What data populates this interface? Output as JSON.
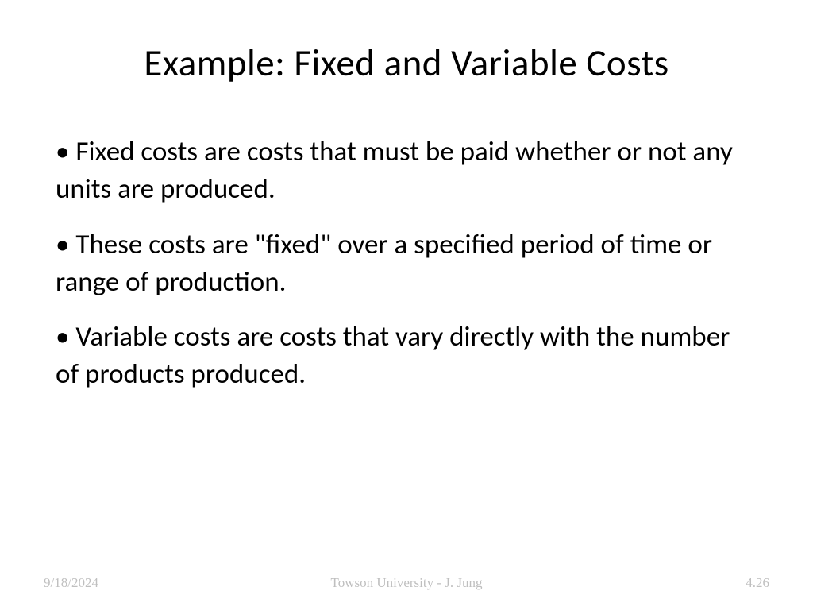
{
  "slide": {
    "title": "Example: Fixed and Variable Costs",
    "bullets": [
      "Fixed costs are costs that must be paid whether or not any units are produced.",
      "These costs are \"fixed\" over a specified period of time or range of production.",
      "Variable costs are costs that vary directly with the number of products produced."
    ],
    "bullet_char": "•"
  },
  "footer": {
    "date": "9/18/2024",
    "attribution": "Towson University - J. Jung",
    "page_number": "4.26"
  },
  "style": {
    "background_color": "#ffffff",
    "title_color": "#000000",
    "title_fontsize": 47,
    "body_color": "#000000",
    "body_fontsize": 35,
    "footer_color": "#bfbfbf",
    "footer_fontsize": 17
  }
}
